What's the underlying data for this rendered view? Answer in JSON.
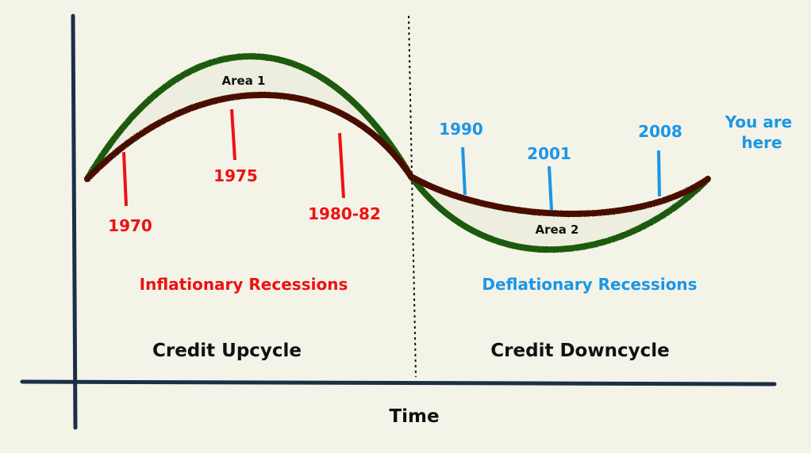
{
  "colors": {
    "background": "#f4f3e8",
    "axis": "#1b3047",
    "outer_curve": "#1f5a0e",
    "inner_curve": "#4a0e05",
    "area_fill": "#eeeee0",
    "inflationary": "#ee1111",
    "deflationary": "#1a96e6",
    "text": "#111111"
  },
  "labels": {
    "area1": "Area 1",
    "area2": "Area 2",
    "inflationary_title": "Inflationary Recessions",
    "deflationary_title": "Deflationary Recessions",
    "credit_upcycle": "Credit Upcycle",
    "credit_downcycle": "Credit Downcycle",
    "x_axis": "Time",
    "you_are_line1": "You are",
    "you_are_line2": "here"
  },
  "markers": {
    "inflationary": [
      {
        "year": "1970"
      },
      {
        "year": "1975"
      },
      {
        "year": "1980-82"
      }
    ],
    "deflationary": [
      {
        "year": "1990"
      },
      {
        "year": "2001"
      },
      {
        "year": "2008"
      }
    ]
  }
}
